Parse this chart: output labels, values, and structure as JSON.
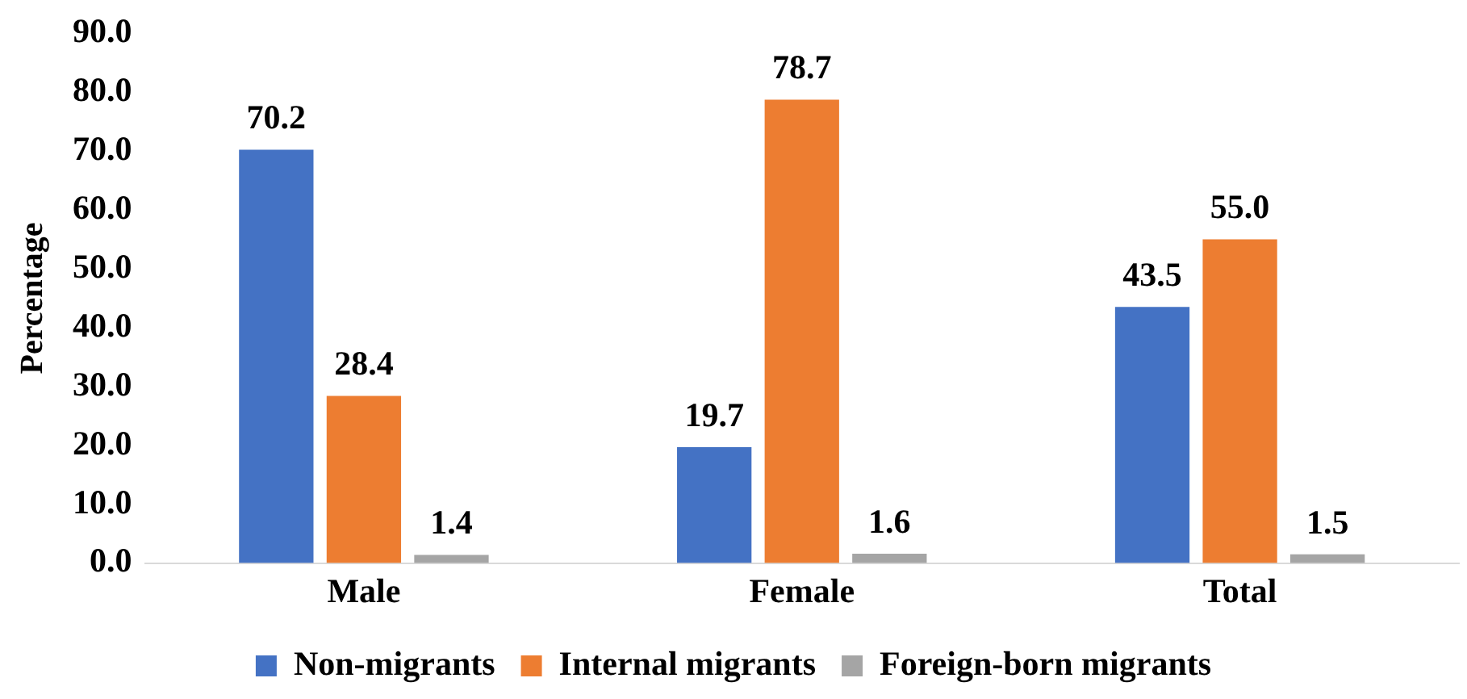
{
  "chart_data": {
    "type": "bar",
    "ylabel": "Percentage",
    "categories": [
      "Male",
      "Female",
      "Total"
    ],
    "series": [
      {
        "name": "Non-migrants",
        "color": "#4472c4",
        "values": [
          70.2,
          19.7,
          43.5
        ],
        "value_labels": [
          "70.2",
          "19.7",
          "43.5"
        ]
      },
      {
        "name": "Internal migrants",
        "color": "#ed7d31",
        "values": [
          28.4,
          78.7,
          55.0
        ],
        "value_labels": [
          "28.4",
          "78.7",
          "55.0"
        ]
      },
      {
        "name": "Foreign-born migrants",
        "color": "#a5a5a5",
        "values": [
          1.4,
          1.6,
          1.5
        ],
        "value_labels": [
          "1.4",
          "1.6",
          "1.5"
        ]
      }
    ],
    "ylim": [
      0,
      90
    ],
    "yticks": [
      {
        "value": 0,
        "label": "0.0"
      },
      {
        "value": 10,
        "label": "10.0"
      },
      {
        "value": 20,
        "label": "20.0"
      },
      {
        "value": 30,
        "label": "30.0"
      },
      {
        "value": 40,
        "label": "40.0"
      },
      {
        "value": 50,
        "label": "50.0"
      },
      {
        "value": 60,
        "label": "60.0"
      },
      {
        "value": 70,
        "label": "70.0"
      },
      {
        "value": 80,
        "label": "80.0"
      },
      {
        "value": 90,
        "label": "90.0"
      }
    ],
    "grid": false,
    "legend": "bottom"
  }
}
